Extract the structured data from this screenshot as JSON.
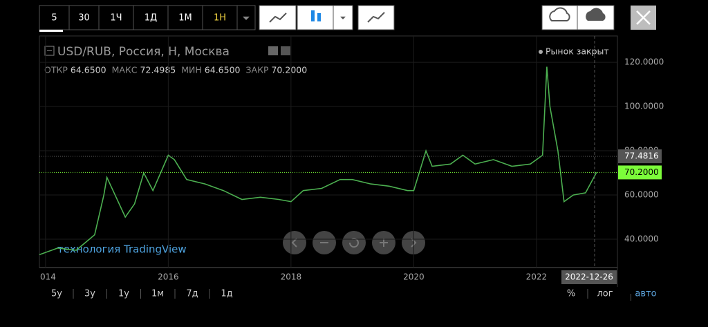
{
  "toolbar": {
    "intervals": [
      "5",
      "30",
      "1Ч",
      "1Д",
      "1М",
      "1Н"
    ]
  },
  "legend": {
    "symbol": "USD/RUB, Россия, Н, Москва",
    "status": "Рынок закрыт",
    "ohlc": [
      {
        "label": "ОТКР",
        "value": "64.6500"
      },
      {
        "label": "МАКС",
        "value": "72.4985"
      },
      {
        "label": "МИН",
        "value": "64.6500"
      },
      {
        "label": "ЗАКР",
        "value": "70.2000"
      }
    ]
  },
  "watermark": "технология TradingView",
  "chart_data": {
    "type": "line",
    "color": "#4caf50",
    "x": [
      2013.9,
      2014.2,
      2014.5,
      2014.8,
      2014.95,
      2015.0,
      2015.1,
      2015.3,
      2015.45,
      2015.6,
      2015.75,
      2016.0,
      2016.1,
      2016.3,
      2016.6,
      2016.9,
      2017.2,
      2017.5,
      2017.8,
      2018.0,
      2018.2,
      2018.5,
      2018.8,
      2019.0,
      2019.3,
      2019.6,
      2019.9,
      2020.0,
      2020.2,
      2020.3,
      2020.6,
      2020.8,
      2021.0,
      2021.3,
      2021.6,
      2021.9,
      2022.1,
      2022.17,
      2022.22,
      2022.35,
      2022.45,
      2022.6,
      2022.8,
      2022.98
    ],
    "values": [
      33,
      36,
      35,
      42,
      60,
      68,
      62,
      50,
      56,
      70,
      62,
      78,
      76,
      67,
      65,
      62,
      58,
      59,
      58,
      57,
      62,
      63,
      67,
      67,
      65,
      64,
      62,
      62,
      80,
      73,
      74,
      78,
      74,
      76,
      73,
      74,
      78,
      118,
      100,
      80,
      57,
      60,
      61,
      70.2
    ],
    "xlim": [
      2013.9,
      2023.32
    ],
    "ylim": [
      27.2,
      131.9
    ],
    "xticks": [
      {
        "value": 2014,
        "label": "014"
      },
      2016,
      2018,
      2020,
      2022
    ],
    "yticks": [
      {
        "value": 40,
        "label": "40.0000"
      },
      {
        "value": 60,
        "label": "60.0000"
      },
      {
        "value": 80,
        "label": "80.0000"
      },
      {
        "value": 100,
        "label": "100.0000"
      },
      {
        "value": 120,
        "label": "120.0000"
      }
    ],
    "price_labels": [
      {
        "value": 77.4816,
        "label": "77.4816",
        "color": "#555555"
      },
      {
        "value": 70.2,
        "label": "70.2000",
        "color": "#7cfc3a"
      }
    ],
    "cursor_date": "2022-12-26"
  },
  "ranges": [
    "5у",
    "3у",
    "1у",
    "1м",
    "7д",
    "1д"
  ],
  "scale_modes": [
    "%",
    "лог",
    "авто"
  ]
}
